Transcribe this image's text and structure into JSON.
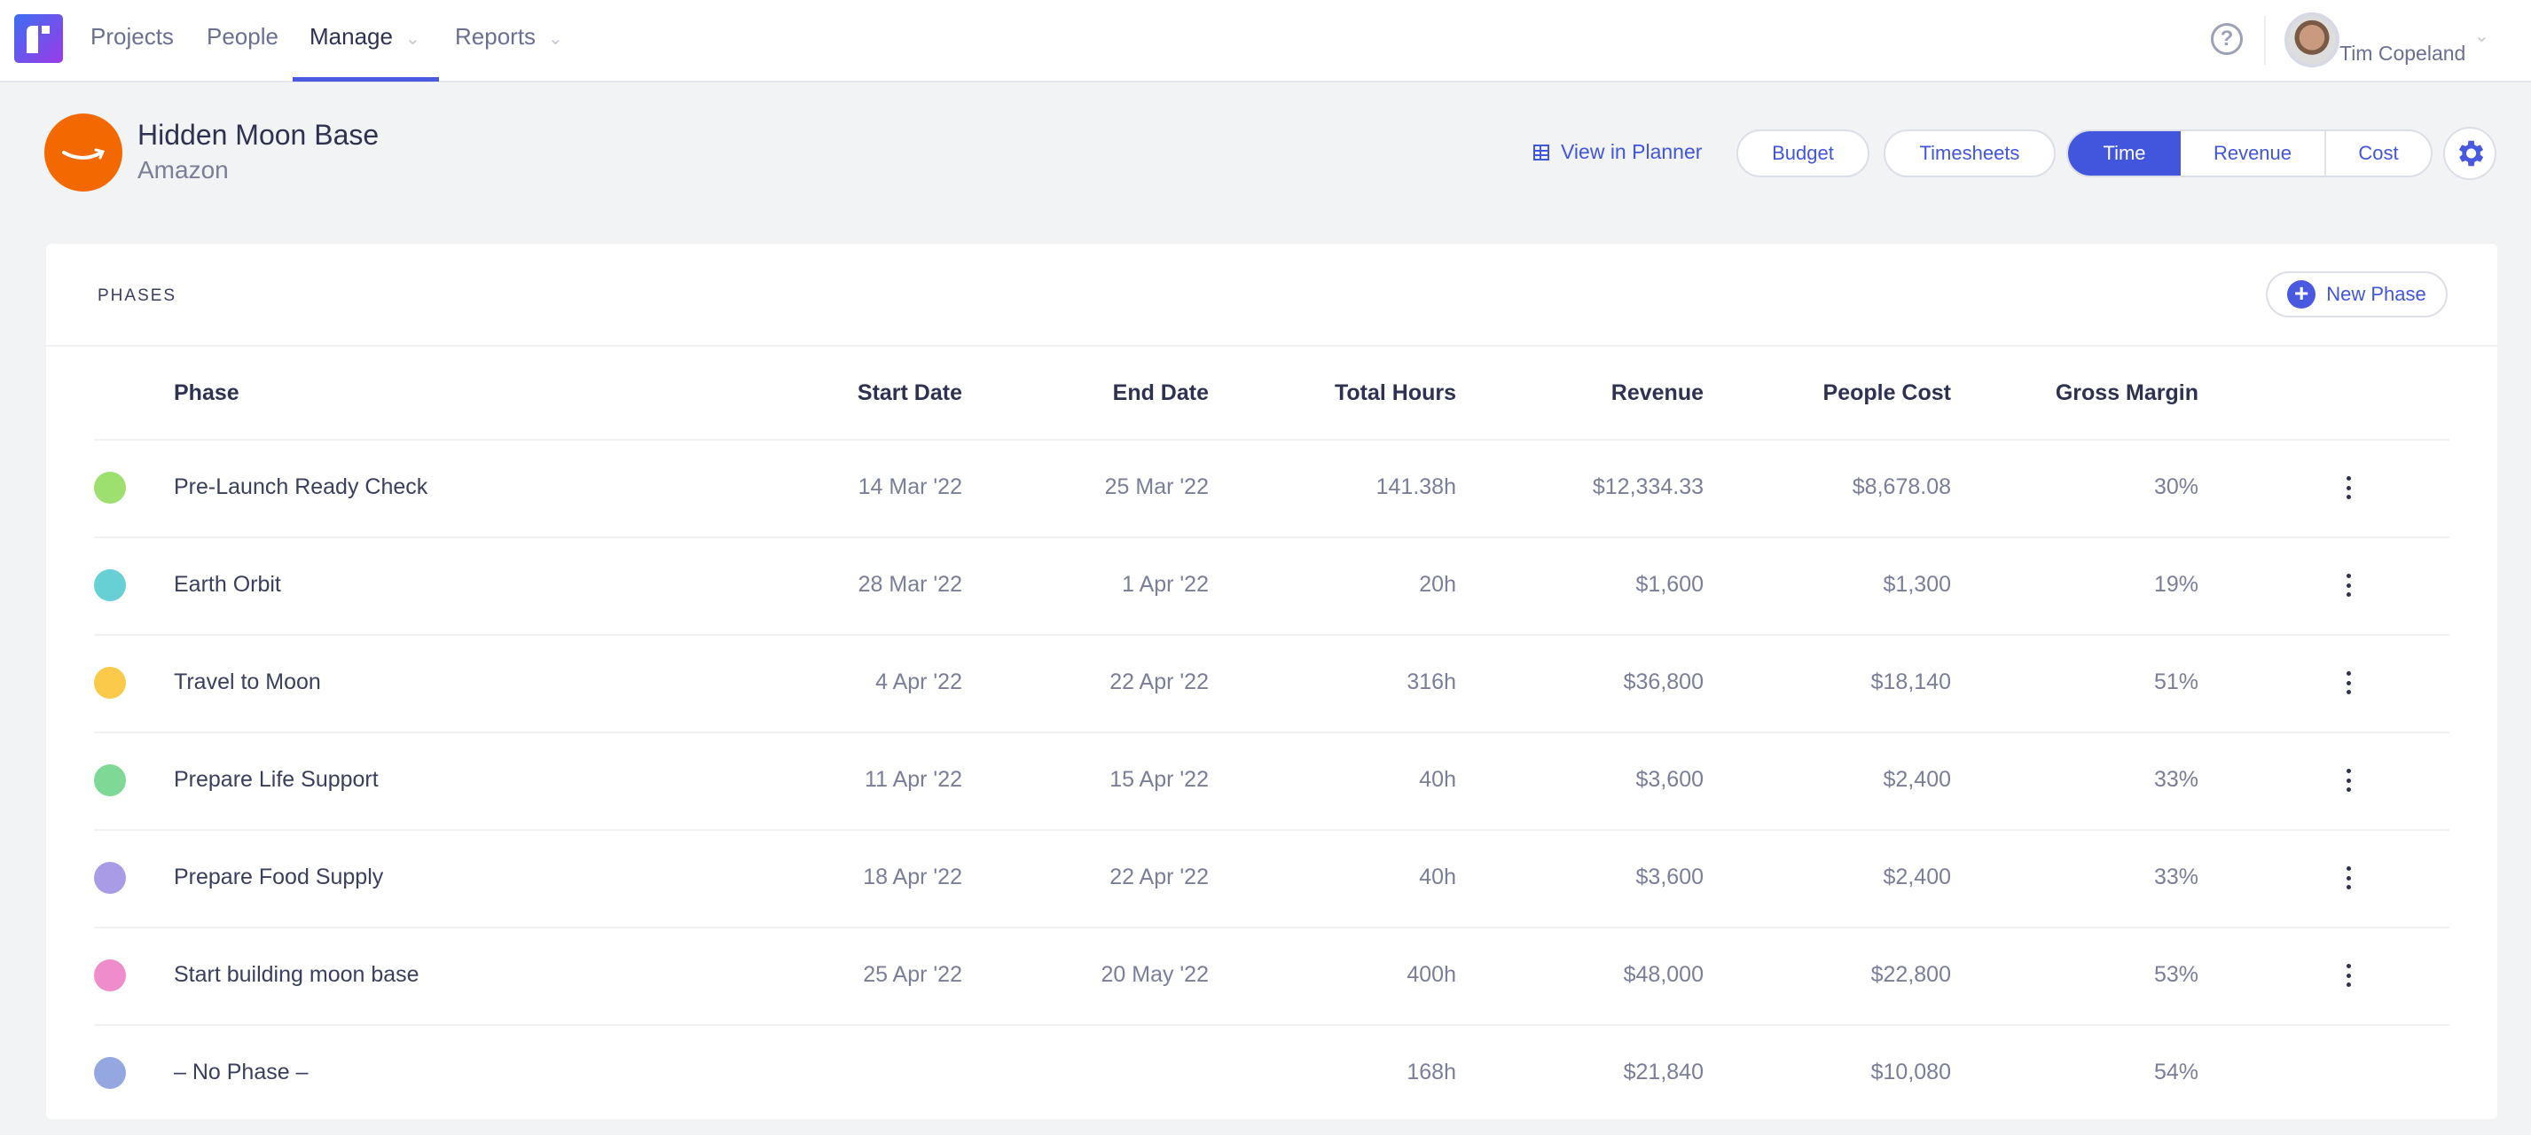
{
  "nav": {
    "items": [
      "Projects",
      "People",
      "Manage",
      "Reports"
    ],
    "active": "Manage",
    "user": "Tim Copeland"
  },
  "project": {
    "title": "Hidden Moon Base",
    "client": "Amazon"
  },
  "actions": {
    "planner": "View in Planner",
    "budget": "Budget",
    "timesheets": "Timesheets",
    "segments": [
      "Time",
      "Revenue",
      "Cost"
    ],
    "active_segment": "Time"
  },
  "phases": {
    "heading": "PHASES",
    "new_phase": "New Phase",
    "columns": [
      "Phase",
      "Start Date",
      "End Date",
      "Total Hours",
      "Revenue",
      "People Cost",
      "Gross Margin"
    ],
    "rows": [
      {
        "name": "Pre-Launch Ready Check",
        "start": "14 Mar '22",
        "end": "25 Mar '22",
        "hours": "141.38h",
        "revenue": "$12,334.33",
        "cost": "$8,678.08",
        "margin": "30%",
        "color": "#9ee06f"
      },
      {
        "name": "Earth Orbit",
        "start": "28 Mar '22",
        "end": "1 Apr '22",
        "hours": "20h",
        "revenue": "$1,600",
        "cost": "$1,300",
        "margin": "19%",
        "color": "#67d0d5"
      },
      {
        "name": "Travel to Moon",
        "start": "4 Apr '22",
        "end": "22 Apr '22",
        "hours": "316h",
        "revenue": "$36,800",
        "cost": "$18,140",
        "margin": "51%",
        "color": "#fcca4b"
      },
      {
        "name": "Prepare Life Support",
        "start": "11 Apr '22",
        "end": "15 Apr '22",
        "hours": "40h",
        "revenue": "$3,600",
        "cost": "$2,400",
        "margin": "33%",
        "color": "#7fd996"
      },
      {
        "name": "Prepare Food Supply",
        "start": "18 Apr '22",
        "end": "22 Apr '22",
        "hours": "40h",
        "revenue": "$3,600",
        "cost": "$2,400",
        "margin": "33%",
        "color": "#a99be6"
      },
      {
        "name": "Start building moon base",
        "start": "25 Apr '22",
        "end": "20 May '22",
        "hours": "400h",
        "revenue": "$48,000",
        "cost": "$22,800",
        "margin": "53%",
        "color": "#ef8ccc"
      },
      {
        "name": "– No Phase –",
        "start": "",
        "end": "",
        "hours": "168h",
        "revenue": "$21,840",
        "cost": "$10,080",
        "margin": "54%",
        "color": "#95a7e0"
      }
    ]
  },
  "colors": {
    "accent": "#4155dd",
    "client_logo": "#f46800"
  }
}
